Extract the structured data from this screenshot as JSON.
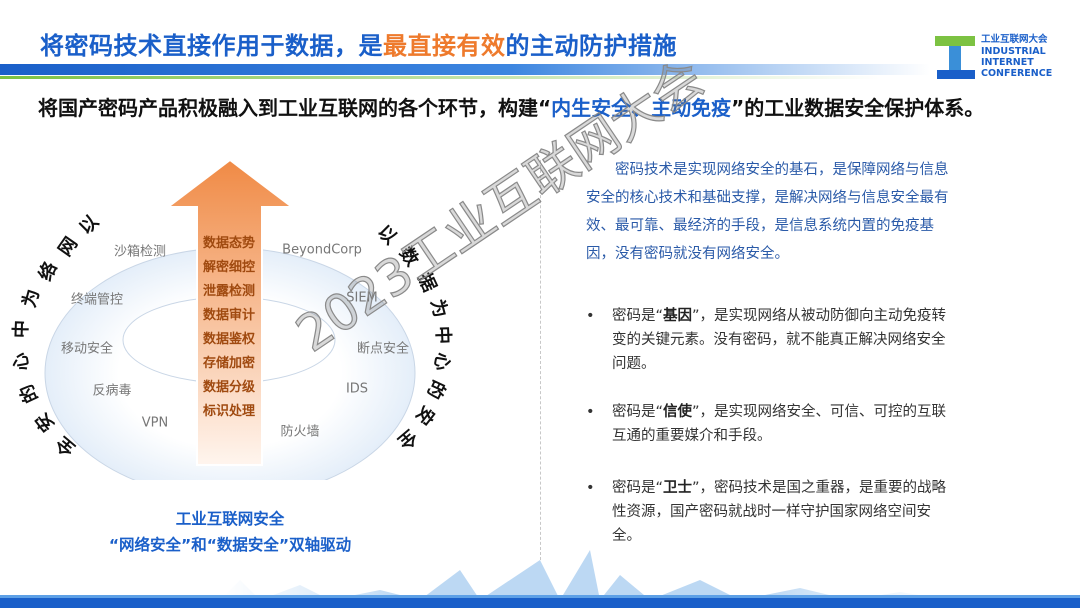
{
  "header": {
    "title_part1": "将密码技术直接作用于数据，是",
    "title_highlight": "最直接有效",
    "title_part2": "的主动防护措施",
    "title_highlight_color": "#ee7a2c",
    "title_color": "#1a5fc9"
  },
  "logo": {
    "cn": "工业互联网大会",
    "en1": "INDUSTRIAL",
    "en2": "INTERNET",
    "en3": "CONFERENCE"
  },
  "subtitle": {
    "part1": "将国产密码产品积极融入到工业互联网的各个环节，构建“",
    "highlight": "内生安全、主动免疫",
    "part2": "”的工业数据安全保护体系。"
  },
  "diagram": {
    "left_arc": [
      "以",
      "网",
      "络",
      "为",
      "中",
      "心",
      "的",
      "安",
      "全"
    ],
    "right_arc": [
      "以",
      "数",
      "据",
      "为",
      "中",
      "心",
      "的",
      "安",
      "全"
    ],
    "ring_left": [
      "沙箱检测",
      "终端管控",
      "移动安全",
      "反病毒",
      "VPN"
    ],
    "ring_right": [
      "BeyondCorp",
      "SIEM",
      "断点安全",
      "IDS",
      "防火墙"
    ],
    "arrow_items": [
      "数据态势",
      "解密细控",
      "泄露检测",
      "数据审计",
      "数据鉴权",
      "存储加密",
      "数据分级",
      "标识处理"
    ],
    "caption1": "工业互联网安全",
    "caption2": "“网络安全”和“数据安全”双轴驱动"
  },
  "right": {
    "paragraph": "密码技术是实现网络安全的基石，是保障网络与信息安全的核心技术和基础支撑，是解决网络与信息安全最有效、最可靠、最经济的手段，是信息系统内置的免疫基因，没有密码就没有网络安全。",
    "bullets": [
      {
        "pre": "密码是“",
        "bold": "基因",
        "post": "”，是实现网络从被动防御向主动免疫转变的关键元素。没有密码，就不能真正解决网络安全问题。"
      },
      {
        "pre": "密码是“",
        "bold": "信使",
        "post": "”，是实现网络安全、可信、可控的互联互通的重要媒介和手段。"
      },
      {
        "pre": "密码是“",
        "bold": "卫士",
        "post": "”，密码技术是国之重器，是重要的战略性资源，国产密码就战时一样守护国家网络空间安全。"
      }
    ]
  },
  "watermark": "2023工业互联网大会"
}
